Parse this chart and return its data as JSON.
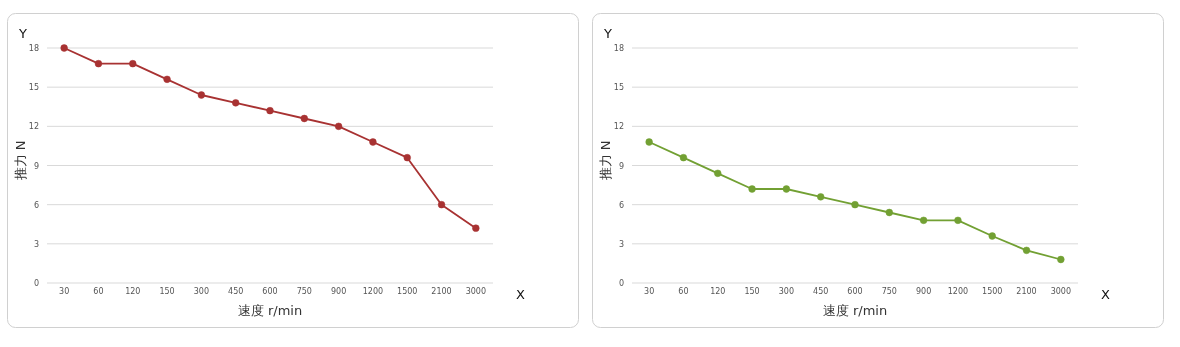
{
  "chart_data": [
    {
      "type": "line",
      "categories": [
        "30",
        "60",
        "120",
        "150",
        "300",
        "450",
        "600",
        "750",
        "900",
        "1200",
        "1500",
        "2100",
        "3000"
      ],
      "series": [
        {
          "color": "#a83232",
          "values": [
            18,
            16.8,
            16.8,
            15.6,
            14.4,
            13.8,
            13.2,
            12.6,
            12.0,
            10.8,
            9.6,
            6.0,
            4.2
          ]
        }
      ],
      "ylim": [
        0,
        18
      ],
      "yticks": [
        0,
        3,
        6,
        9,
        12,
        15,
        18
      ],
      "ylabel": "推力 N",
      "xlabel": "速度 r/min",
      "annotations": [
        "Y",
        "X"
      ],
      "grid": "y",
      "marker": "circle",
      "line_style": "solid"
    },
    {
      "type": "line",
      "categories": [
        "30",
        "60",
        "120",
        "150",
        "300",
        "450",
        "600",
        "750",
        "900",
        "1200",
        "1500",
        "2100",
        "3000"
      ],
      "series": [
        {
          "color": "#72a033",
          "values": [
            10.8,
            9.6,
            8.4,
            7.2,
            7.2,
            6.6,
            6.0,
            5.4,
            4.8,
            4.8,
            3.6,
            2.5,
            1.8
          ]
        }
      ],
      "ylim": [
        0,
        18
      ],
      "yticks": [
        0,
        3,
        6,
        9,
        12,
        15,
        18
      ],
      "ylabel": "推力 N",
      "xlabel": "速度 r/min",
      "annotations": [
        "Y",
        "X"
      ],
      "grid": "y",
      "marker": "circle",
      "line_style": "solid"
    }
  ]
}
